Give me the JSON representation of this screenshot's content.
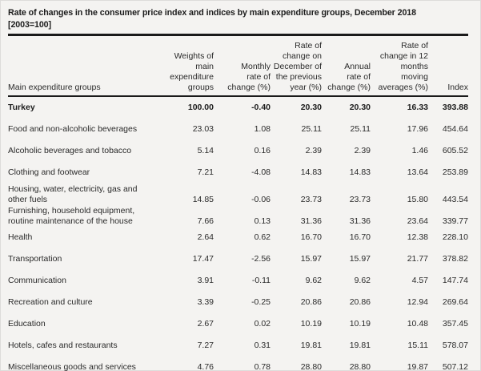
{
  "title": "Rate of changes in the consumer price index and indices by main expenditure groups, December 2018\n[2003=100]",
  "colors": {
    "background": "#f4f3f1",
    "text": "#2a2a2a",
    "rule": "#1a1a1a"
  },
  "table": {
    "label_header": "Main expenditure groups",
    "columns": [
      "Weights of\nmain\nexpenditure\ngroups",
      "Monthly\nrate of\nchange (%)",
      "Rate of\nchange on\nDecember of\nthe previous\nyear (%)",
      "Annual\nrate of\nchange (%)",
      "Rate of\nchange in 12\nmonths\nmoving\naverages (%)",
      "Index"
    ],
    "rows": [
      {
        "label": "Turkey",
        "bold": true,
        "values": [
          "100.00",
          "-0.40",
          "20.30",
          "20.30",
          "16.33",
          "393.88"
        ]
      },
      {
        "label": "Food and non-alcoholic beverages",
        "values": [
          "23.03",
          "1.08",
          "25.11",
          "25.11",
          "17.96",
          "454.64"
        ]
      },
      {
        "label": "Alcoholic beverages and tobacco",
        "values": [
          "5.14",
          "0.16",
          "2.39",
          "2.39",
          "1.46",
          "605.52"
        ]
      },
      {
        "label": "Clothing and footwear",
        "values": [
          "7.21",
          "-4.08",
          "14.83",
          "14.83",
          "13.64",
          "253.89"
        ]
      },
      {
        "label": "Housing, water, electricity, gas and\nother fuels",
        "double": true,
        "values": [
          "14.85",
          "-0.06",
          "23.73",
          "23.73",
          "15.80",
          "443.54"
        ]
      },
      {
        "label": "Furnishing, household equipment,\nroutine maintenance of the house",
        "double": true,
        "values": [
          "7.66",
          "0.13",
          "31.36",
          "31.36",
          "23.64",
          "339.77"
        ]
      },
      {
        "label": "Health",
        "values": [
          "2.64",
          "0.62",
          "16.70",
          "16.70",
          "12.38",
          "228.10"
        ]
      },
      {
        "label": "Transportation",
        "values": [
          "17.47",
          "-2.56",
          "15.97",
          "15.97",
          "21.77",
          "378.82"
        ]
      },
      {
        "label": "Communication",
        "values": [
          "3.91",
          "-0.11",
          "9.62",
          "9.62",
          "4.57",
          "147.74"
        ]
      },
      {
        "label": "Recreation and culture",
        "values": [
          "3.39",
          "-0.25",
          "20.86",
          "20.86",
          "12.94",
          "269.64"
        ]
      },
      {
        "label": "Education",
        "values": [
          "2.67",
          "0.02",
          "10.19",
          "10.19",
          "10.48",
          "357.45"
        ]
      },
      {
        "label": "Hotels, cafes and restaurants",
        "values": [
          "7.27",
          "0.31",
          "19.81",
          "19.81",
          "15.11",
          "578.07"
        ]
      },
      {
        "label": "Miscellaneous goods and services",
        "values": [
          "4.76",
          "0.78",
          "28.80",
          "28.80",
          "19.87",
          "507.12"
        ]
      }
    ]
  },
  "chart_data": {
    "type": "table",
    "title": "Rate of changes in the consumer price index and indices by main expenditure groups, December 2018 [2003=100]",
    "columns": [
      "Main expenditure groups",
      "Weights of main expenditure groups",
      "Monthly rate of change (%)",
      "Rate of change on December of the previous year (%)",
      "Annual rate of change (%)",
      "Rate of change in 12 months moving averages (%)",
      "Index"
    ],
    "rows": [
      [
        "Turkey",
        100.0,
        -0.4,
        20.3,
        20.3,
        16.33,
        393.88
      ],
      [
        "Food and non-alcoholic beverages",
        23.03,
        1.08,
        25.11,
        25.11,
        17.96,
        454.64
      ],
      [
        "Alcoholic beverages and tobacco",
        5.14,
        0.16,
        2.39,
        2.39,
        1.46,
        605.52
      ],
      [
        "Clothing and footwear",
        7.21,
        -4.08,
        14.83,
        14.83,
        13.64,
        253.89
      ],
      [
        "Housing, water, electricity, gas and other fuels",
        14.85,
        -0.06,
        23.73,
        23.73,
        15.8,
        443.54
      ],
      [
        "Furnishing, household equipment, routine maintenance of the house",
        7.66,
        0.13,
        31.36,
        31.36,
        23.64,
        339.77
      ],
      [
        "Health",
        2.64,
        0.62,
        16.7,
        16.7,
        12.38,
        228.1
      ],
      [
        "Transportation",
        17.47,
        -2.56,
        15.97,
        15.97,
        21.77,
        378.82
      ],
      [
        "Communication",
        3.91,
        -0.11,
        9.62,
        9.62,
        4.57,
        147.74
      ],
      [
        "Recreation and culture",
        3.39,
        -0.25,
        20.86,
        20.86,
        12.94,
        269.64
      ],
      [
        "Education",
        2.67,
        0.02,
        10.19,
        10.19,
        10.48,
        357.45
      ],
      [
        "Hotels, cafes and restaurants",
        7.27,
        0.31,
        19.81,
        19.81,
        15.11,
        578.07
      ],
      [
        "Miscellaneous goods and services",
        4.76,
        0.78,
        28.8,
        28.8,
        19.87,
        507.12
      ]
    ]
  }
}
